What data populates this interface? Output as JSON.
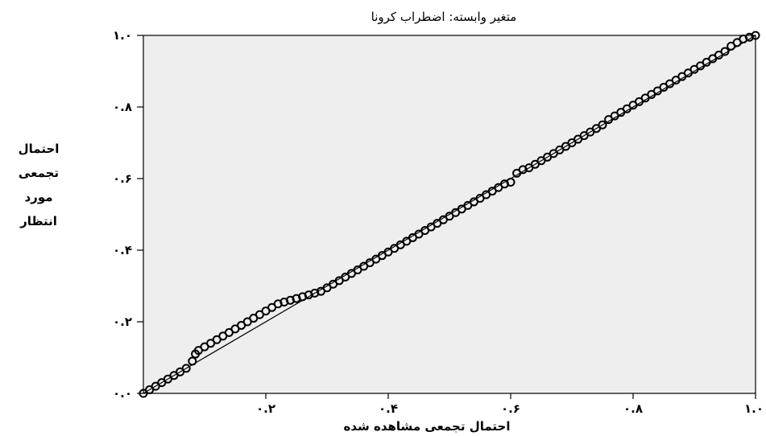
{
  "chart_data": {
    "type": "scatter",
    "title": "متغیر وابسته: اضطراب کرونا",
    "xlabel": "احتمال تجمعی مشاهده شده",
    "ylabel_lines": [
      "احتمال",
      "تجمعی",
      "مورد",
      "انتظار"
    ],
    "xlim": [
      0,
      1
    ],
    "ylim": [
      0,
      1
    ],
    "x_ticks": [
      {
        "value": 0.2,
        "label": "۰.۲"
      },
      {
        "value": 0.4,
        "label": "۰.۴"
      },
      {
        "value": 0.6,
        "label": "۰.۶"
      },
      {
        "value": 0.8,
        "label": "۰.۸"
      },
      {
        "value": 1.0,
        "label": "۱.۰"
      }
    ],
    "y_ticks": [
      {
        "value": 0.0,
        "label": "۰.۰"
      },
      {
        "value": 0.2,
        "label": "۰.۲"
      },
      {
        "value": 0.4,
        "label": "۰.۴"
      },
      {
        "value": 0.6,
        "label": "۰.۶"
      },
      {
        "value": 0.8,
        "label": "۰.۸"
      },
      {
        "value": 1.0,
        "label": "۱.۰"
      }
    ],
    "reference_line": [
      [
        0,
        0
      ],
      [
        1,
        1
      ]
    ],
    "series": [
      {
        "points": [
          [
            0.0,
            0.0
          ],
          [
            0.01,
            0.01
          ],
          [
            0.02,
            0.02
          ],
          [
            0.03,
            0.03
          ],
          [
            0.04,
            0.04
          ],
          [
            0.05,
            0.05
          ],
          [
            0.06,
            0.06
          ],
          [
            0.07,
            0.07
          ],
          [
            0.08,
            0.09
          ],
          [
            0.085,
            0.11
          ],
          [
            0.09,
            0.12
          ],
          [
            0.1,
            0.13
          ],
          [
            0.11,
            0.14
          ],
          [
            0.12,
            0.15
          ],
          [
            0.13,
            0.16
          ],
          [
            0.14,
            0.17
          ],
          [
            0.15,
            0.18
          ],
          [
            0.16,
            0.19
          ],
          [
            0.17,
            0.2
          ],
          [
            0.18,
            0.21
          ],
          [
            0.19,
            0.22
          ],
          [
            0.2,
            0.23
          ],
          [
            0.21,
            0.24
          ],
          [
            0.22,
            0.25
          ],
          [
            0.23,
            0.255
          ],
          [
            0.24,
            0.26
          ],
          [
            0.25,
            0.265
          ],
          [
            0.26,
            0.27
          ],
          [
            0.27,
            0.275
          ],
          [
            0.28,
            0.28
          ],
          [
            0.29,
            0.285
          ],
          [
            0.3,
            0.295
          ],
          [
            0.31,
            0.305
          ],
          [
            0.32,
            0.315
          ],
          [
            0.33,
            0.325
          ],
          [
            0.34,
            0.335
          ],
          [
            0.35,
            0.345
          ],
          [
            0.36,
            0.355
          ],
          [
            0.37,
            0.365
          ],
          [
            0.38,
            0.375
          ],
          [
            0.39,
            0.385
          ],
          [
            0.4,
            0.395
          ],
          [
            0.41,
            0.405
          ],
          [
            0.42,
            0.415
          ],
          [
            0.43,
            0.425
          ],
          [
            0.44,
            0.435
          ],
          [
            0.45,
            0.445
          ],
          [
            0.46,
            0.455
          ],
          [
            0.47,
            0.465
          ],
          [
            0.48,
            0.475
          ],
          [
            0.49,
            0.485
          ],
          [
            0.5,
            0.495
          ],
          [
            0.51,
            0.505
          ],
          [
            0.52,
            0.515
          ],
          [
            0.53,
            0.525
          ],
          [
            0.54,
            0.535
          ],
          [
            0.55,
            0.545
          ],
          [
            0.56,
            0.555
          ],
          [
            0.57,
            0.565
          ],
          [
            0.58,
            0.575
          ],
          [
            0.59,
            0.585
          ],
          [
            0.6,
            0.59
          ],
          [
            0.61,
            0.615
          ],
          [
            0.62,
            0.625
          ],
          [
            0.63,
            0.63
          ],
          [
            0.64,
            0.64
          ],
          [
            0.65,
            0.65
          ],
          [
            0.66,
            0.66
          ],
          [
            0.67,
            0.67
          ],
          [
            0.68,
            0.68
          ],
          [
            0.69,
            0.69
          ],
          [
            0.7,
            0.7
          ],
          [
            0.71,
            0.71
          ],
          [
            0.72,
            0.72
          ],
          [
            0.73,
            0.73
          ],
          [
            0.74,
            0.74
          ],
          [
            0.75,
            0.75
          ],
          [
            0.76,
            0.765
          ],
          [
            0.77,
            0.775
          ],
          [
            0.78,
            0.785
          ],
          [
            0.79,
            0.795
          ],
          [
            0.8,
            0.805
          ],
          [
            0.81,
            0.815
          ],
          [
            0.82,
            0.825
          ],
          [
            0.83,
            0.835
          ],
          [
            0.84,
            0.845
          ],
          [
            0.85,
            0.855
          ],
          [
            0.86,
            0.865
          ],
          [
            0.87,
            0.875
          ],
          [
            0.88,
            0.885
          ],
          [
            0.89,
            0.895
          ],
          [
            0.9,
            0.905
          ],
          [
            0.91,
            0.915
          ],
          [
            0.92,
            0.925
          ],
          [
            0.93,
            0.935
          ],
          [
            0.94,
            0.945
          ],
          [
            0.95,
            0.955
          ],
          [
            0.96,
            0.97
          ],
          [
            0.97,
            0.98
          ],
          [
            0.98,
            0.99
          ],
          [
            0.99,
            0.995
          ],
          [
            1.0,
            1.0
          ]
        ]
      }
    ],
    "grid": false,
    "colors": {
      "plot_background": "#eeeeee",
      "points": "#000000",
      "reference_line": "#000000"
    }
  }
}
